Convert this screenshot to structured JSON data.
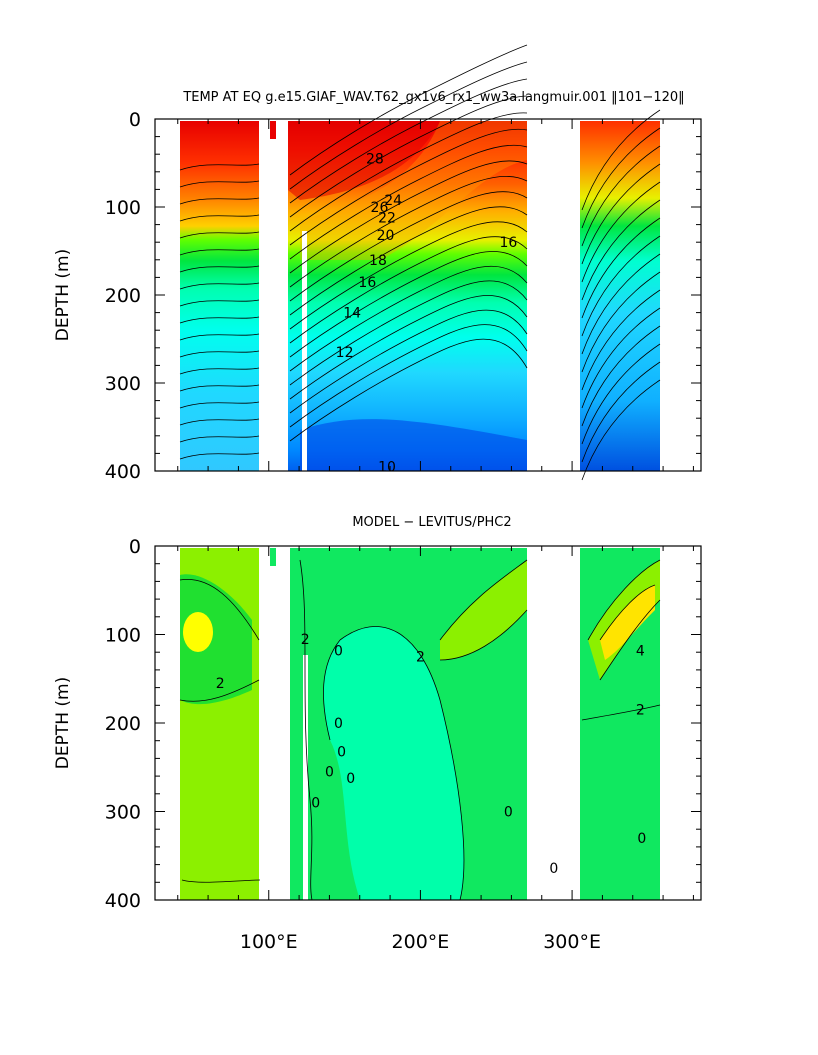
{
  "chart_data": [
    {
      "type": "contour",
      "title": "TEMP AT EQ g.e15.GIAF_WAV.T62_gx1v6_rx1_ww3a.langmuir.001 ‖101−120‖",
      "ylabel": "DEPTH (m)",
      "xlim": [
        25,
        385
      ],
      "ylim": [
        400,
        0
      ],
      "y_ticks": [
        "0",
        "100",
        "200",
        "300",
        "400"
      ],
      "x_tick_labels": [],
      "contour_labels": [
        {
          "text": "28",
          "x": 170,
          "y": 45
        },
        {
          "text": "26",
          "x": 173,
          "y": 100
        },
        {
          "text": "24",
          "x": 182,
          "y": 92
        },
        {
          "text": "22",
          "x": 178,
          "y": 112
        },
        {
          "text": "20",
          "x": 177,
          "y": 132
        },
        {
          "text": "18",
          "x": 172,
          "y": 160
        },
        {
          "text": "16",
          "x": 165,
          "y": 185
        },
        {
          "text": "16",
          "x": 258,
          "y": 140
        },
        {
          "text": "14",
          "x": 155,
          "y": 220
        },
        {
          "text": "12",
          "x": 150,
          "y": 265
        },
        {
          "text": "10",
          "x": 178,
          "y": 395
        }
      ],
      "levels": [
        8,
        10,
        12,
        14,
        16,
        18,
        20,
        22,
        24,
        26,
        28
      ],
      "colors": {
        "warm": "#ff0000",
        "mid": "#00ff7f",
        "cool": "#0040ff"
      }
    },
    {
      "type": "contour",
      "title": "MODEL − LEVITUS/PHC2",
      "ylabel": "DEPTH (m)",
      "xlim": [
        25,
        385
      ],
      "ylim": [
        400,
        0
      ],
      "y_ticks": [
        "0",
        "100",
        "200",
        "300",
        "400"
      ],
      "x_tick_labels": [
        "100°E",
        "200°E",
        "300°E"
      ],
      "contour_labels": [
        {
          "text": "2",
          "x": 68,
          "y": 155
        },
        {
          "text": "2",
          "x": 124,
          "y": 105
        },
        {
          "text": "0",
          "x": 146,
          "y": 118
        },
        {
          "text": "0",
          "x": 146,
          "y": 200
        },
        {
          "text": "0",
          "x": 148,
          "y": 232
        },
        {
          "text": "0",
          "x": 140,
          "y": 255
        },
        {
          "text": "0",
          "x": 154,
          "y": 262
        },
        {
          "text": "0",
          "x": 131,
          "y": 290
        },
        {
          "text": "2",
          "x": 200,
          "y": 125
        },
        {
          "text": "0",
          "x": 258,
          "y": 300
        },
        {
          "text": "4",
          "x": 345,
          "y": 118
        },
        {
          "text": "2",
          "x": 345,
          "y": 185
        },
        {
          "text": "0",
          "x": 346,
          "y": 330
        },
        {
          "text": "0",
          "x": 288,
          "y": 364
        }
      ],
      "colors": {
        "positive": "#ffff00",
        "zero": "#00ff00",
        "negative": "#00ffaa"
      }
    }
  ]
}
